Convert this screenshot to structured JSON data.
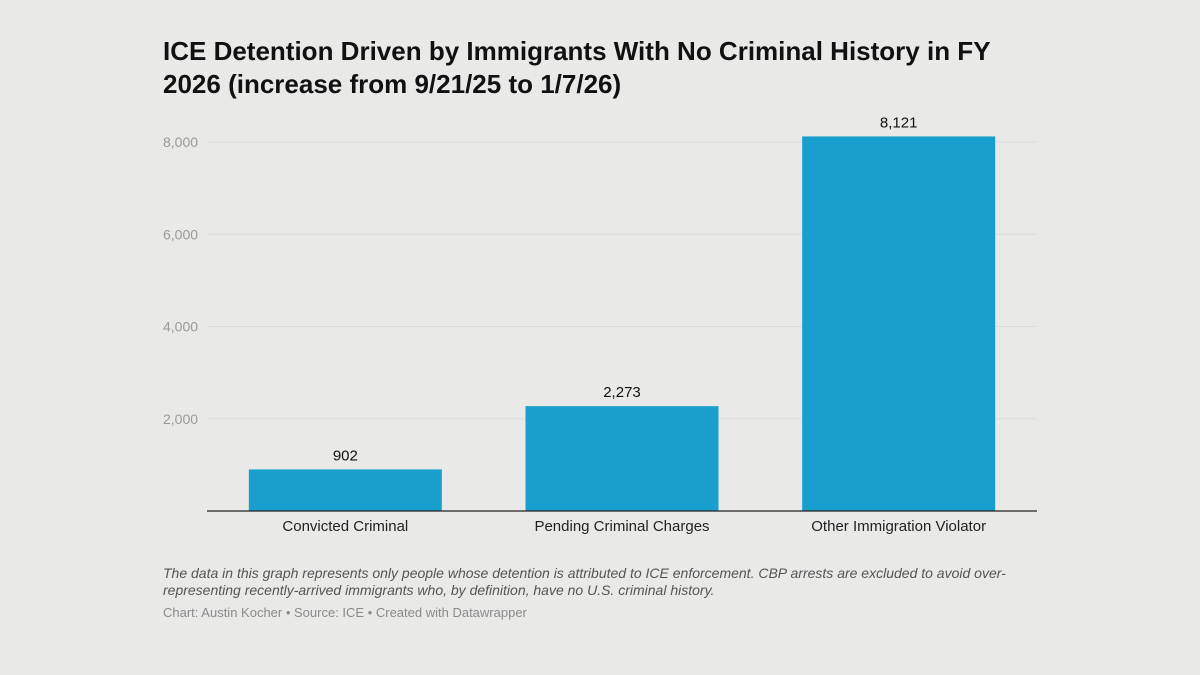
{
  "chart_data": {
    "type": "bar",
    "title": "ICE Detention Driven by Immigrants With No Criminal History in FY 2026 (increase from 9/21/25 to 1/7/26)",
    "categories": [
      "Convicted Criminal",
      "Pending Criminal Charges",
      "Other Immigration Violator"
    ],
    "values": [
      902,
      2273,
      8121
    ],
    "value_labels": [
      "902",
      "2,273",
      "8,121"
    ],
    "yticks": [
      2000,
      4000,
      6000,
      8000
    ],
    "ytick_labels": [
      "2,000",
      "4,000",
      "6,000",
      "8,000"
    ],
    "ylim": [
      0,
      8000
    ],
    "xlabel": "",
    "ylabel": "",
    "grid": true,
    "bar_color": "#189fcd",
    "note": "The data in this graph represents only people whose detention is attributed to ICE enforcement. CBP arrests are excluded to avoid over-representing recently-arrived immigrants who, by definition, have no U.S. criminal history.",
    "byline": "Chart: Austin Kocher • Source: ICE • Created with Datawrapper"
  }
}
